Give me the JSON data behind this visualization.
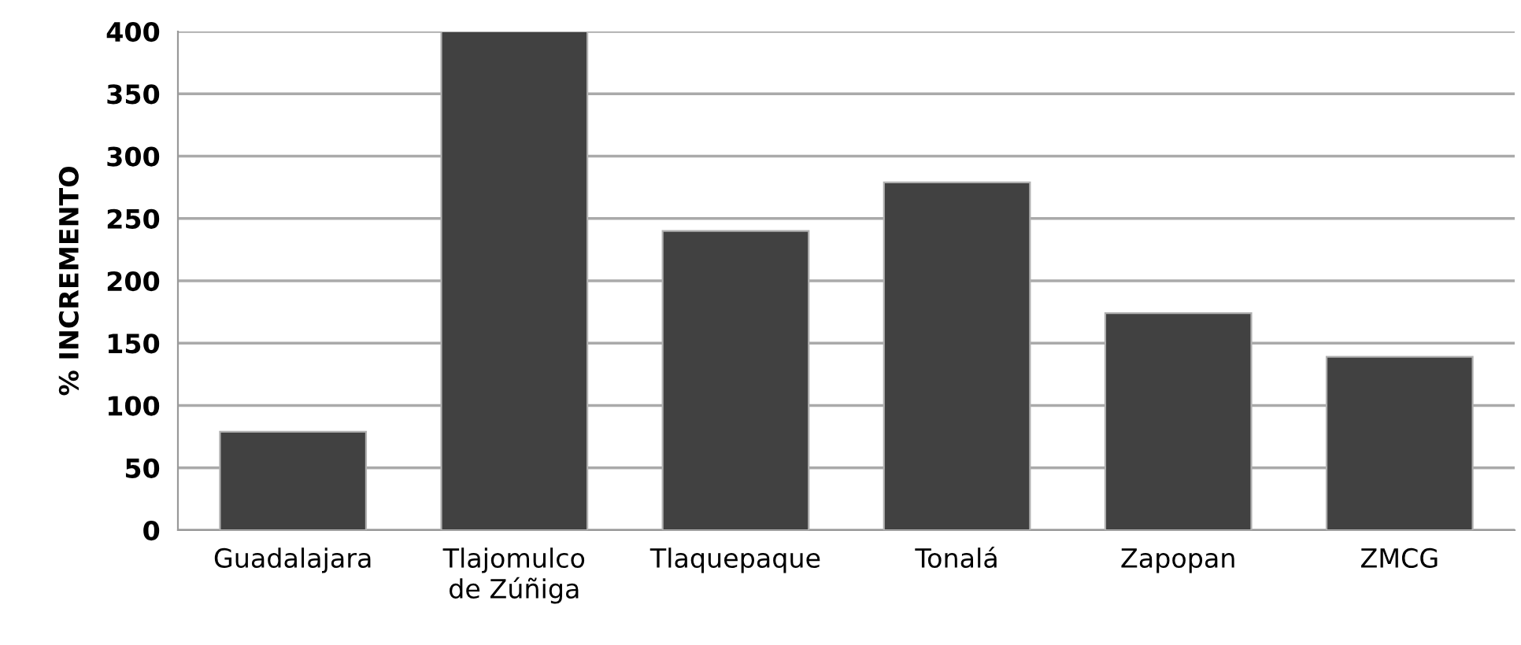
{
  "chart_data": {
    "type": "bar",
    "ylabel": "% INCREMENTO",
    "categories": [
      "Guadalajara",
      "Tlajomulco\nde Zúñiga",
      "Tlaquepaque",
      "Tonalá",
      "Zapopan",
      "ZMCG"
    ],
    "values": [
      79,
      400,
      240,
      279,
      174,
      139
    ],
    "color": "#414141",
    "ylim": [
      0,
      400
    ],
    "yticks": [
      0,
      50,
      100,
      150,
      200,
      250,
      300,
      350,
      400
    ],
    "grid": "y",
    "legend": false
  }
}
